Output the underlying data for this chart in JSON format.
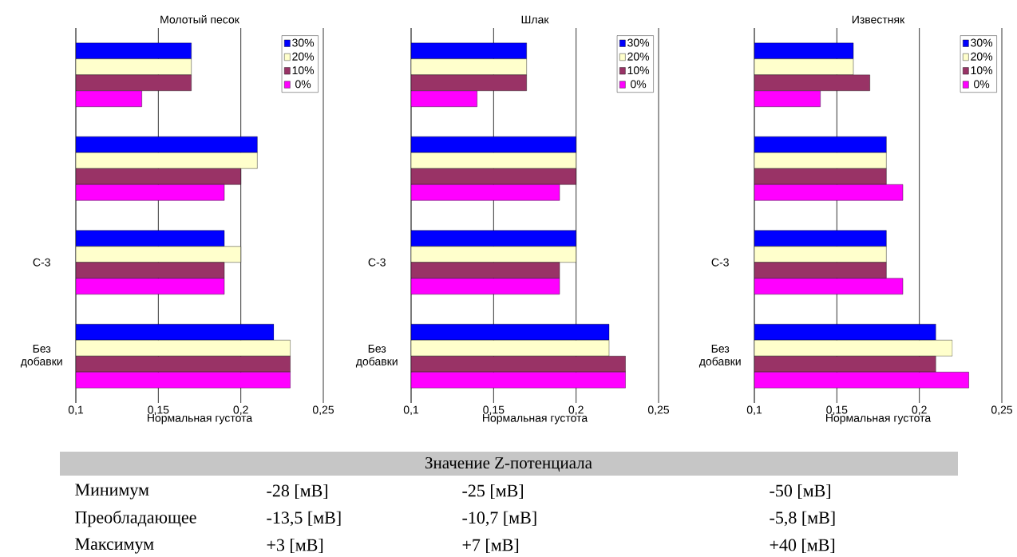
{
  "chart_data": [
    {
      "type": "bar",
      "orientation": "horizontal",
      "title": "Молотый песок",
      "xlabel": "Нормальная густота",
      "categories": [
        null,
        null,
        "С-3",
        "Без добавки"
      ],
      "series": [
        {
          "name": "30%",
          "color": "#0000ff",
          "values": [
            0.17,
            0.21,
            0.19,
            0.22
          ]
        },
        {
          "name": "20%",
          "color": "#ffffcc",
          "values": [
            0.17,
            0.21,
            0.2,
            0.23
          ]
        },
        {
          "name": "10%",
          "color": "#993366",
          "values": [
            0.17,
            0.2,
            0.19,
            0.23
          ]
        },
        {
          "name": "0%",
          "color": "#ff00ff",
          "values": [
            0.14,
            0.19,
            0.19,
            0.23
          ]
        }
      ],
      "xlim": [
        0.1,
        0.25
      ],
      "xticks": [
        {
          "value": 0.1,
          "label": "0,1"
        },
        {
          "value": 0.15,
          "label": "0,15"
        },
        {
          "value": 0.2,
          "label": "0,2"
        },
        {
          "value": 0.25,
          "label": "0,25"
        }
      ],
      "grid": "x",
      "legend": "top right"
    },
    {
      "type": "bar",
      "orientation": "horizontal",
      "title": "Шлак",
      "xlabel": "Нормальная густота",
      "categories": [
        null,
        null,
        "С-3",
        "Без добавки"
      ],
      "series": [
        {
          "name": "30%",
          "color": "#0000ff",
          "values": [
            0.17,
            0.2,
            0.2,
            0.22
          ]
        },
        {
          "name": "20%",
          "color": "#ffffcc",
          "values": [
            0.17,
            0.2,
            0.2,
            0.22
          ]
        },
        {
          "name": "10%",
          "color": "#993366",
          "values": [
            0.17,
            0.2,
            0.19,
            0.23
          ]
        },
        {
          "name": "0%",
          "color": "#ff00ff",
          "values": [
            0.14,
            0.19,
            0.19,
            0.23
          ]
        }
      ],
      "xlim": [
        0.1,
        0.25
      ],
      "xticks": [
        {
          "value": 0.1,
          "label": "0,1"
        },
        {
          "value": 0.15,
          "label": "0,15"
        },
        {
          "value": 0.2,
          "label": "0,2"
        },
        {
          "value": 0.25,
          "label": "0,25"
        }
      ],
      "grid": "x",
      "legend": "top right"
    },
    {
      "type": "bar",
      "orientation": "horizontal",
      "title": "Известняк",
      "xlabel": "Нормальная густота",
      "categories": [
        null,
        null,
        "С-3",
        "Без добавки"
      ],
      "series": [
        {
          "name": "30%",
          "color": "#0000ff",
          "values": [
            0.16,
            0.18,
            0.18,
            0.21
          ]
        },
        {
          "name": "20%",
          "color": "#ffffcc",
          "values": [
            0.16,
            0.18,
            0.18,
            0.22
          ]
        },
        {
          "name": "10%",
          "color": "#993366",
          "values": [
            0.17,
            0.18,
            0.18,
            0.21
          ]
        },
        {
          "name": "0%",
          "color": "#ff00ff",
          "values": [
            0.14,
            0.19,
            0.19,
            0.23
          ]
        }
      ],
      "xlim": [
        0.1,
        0.25
      ],
      "xticks": [
        {
          "value": 0.1,
          "label": "0,1"
        },
        {
          "value": 0.15,
          "label": "0,15"
        },
        {
          "value": 0.2,
          "label": "0,2"
        },
        {
          "value": 0.25,
          "label": "0,25"
        }
      ],
      "grid": "x",
      "legend": "top right"
    },
    {
      "type": "other",
      "title": "Значение Z-потенциала",
      "annotations": [
        "Минимум",
        "-28 [мВ]",
        "-25 [мВ]",
        "-50 [мВ]",
        "Преобладающее",
        "-13,5 [мВ]",
        "-10,7 [мВ]",
        "-5,8 [мВ]",
        "Максимум",
        "+3 [мВ]",
        "+7 [мВ]",
        "+40 [мВ]"
      ]
    }
  ]
}
